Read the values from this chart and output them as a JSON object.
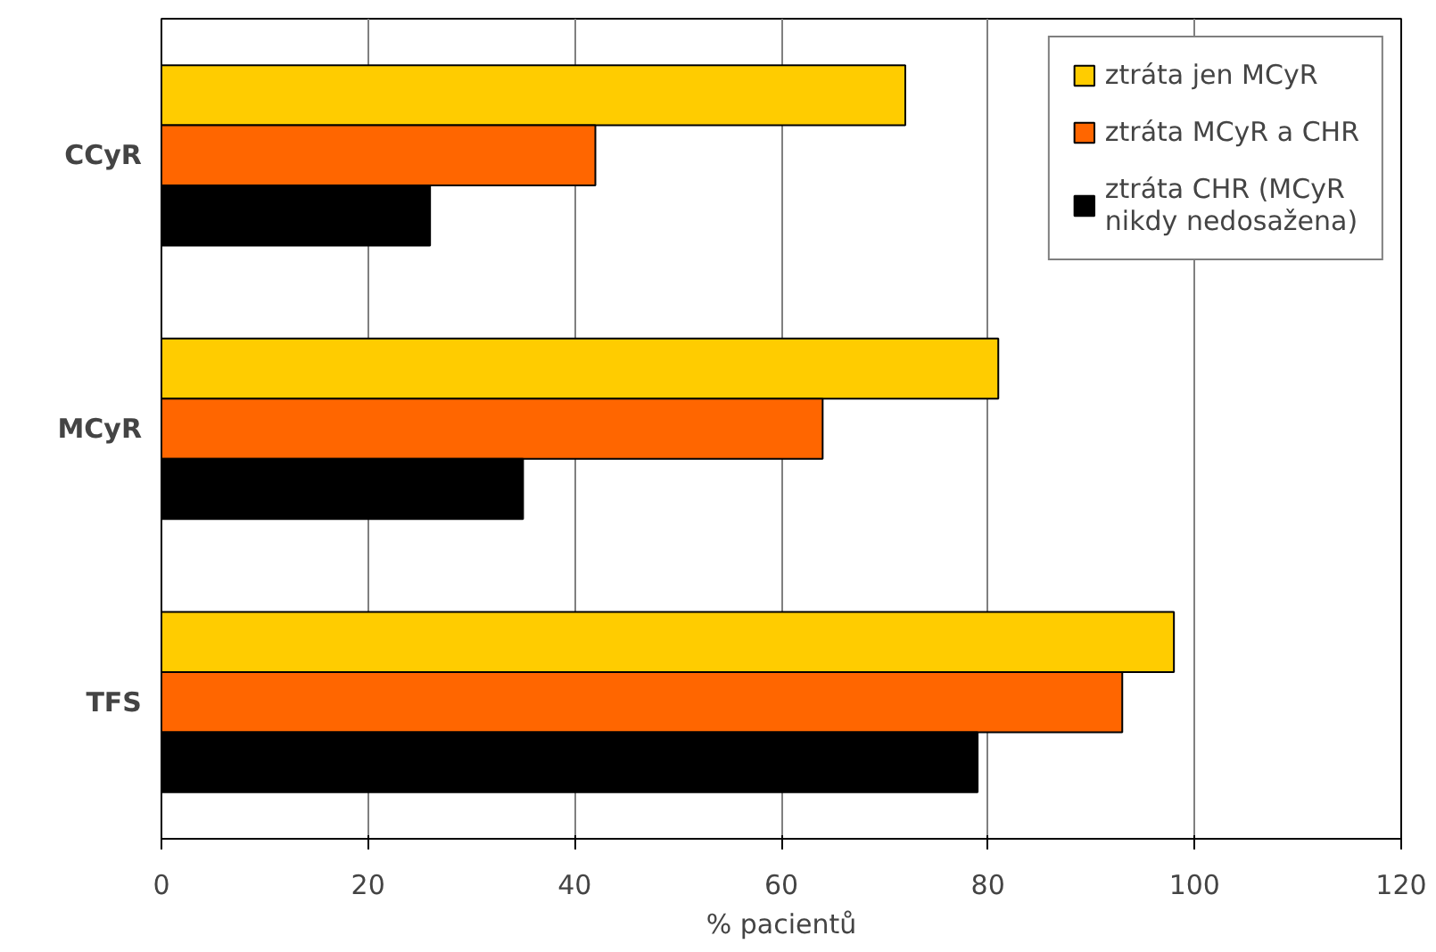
{
  "chart_data": {
    "type": "bar",
    "orientation": "horizontal",
    "xlabel": "% pacientů",
    "categories": [
      "CCyR",
      "MCyR",
      "TFS"
    ],
    "series": [
      {
        "name": "ztráta jen MCyR",
        "color": "#ffcc00",
        "values": [
          72,
          81,
          98
        ]
      },
      {
        "name": "ztráta MCyR a CHR",
        "color": "#ff6600",
        "values": [
          42,
          64,
          93
        ]
      },
      {
        "name": "ztráta CHR (MCyR nikdy nedosažena)",
        "color": "#000000",
        "values": [
          26,
          35,
          79
        ]
      }
    ],
    "xlim": [
      0,
      120
    ],
    "xticks": [
      0,
      20,
      40,
      60,
      80,
      100,
      120
    ],
    "grid": "x",
    "legend": "top right"
  }
}
